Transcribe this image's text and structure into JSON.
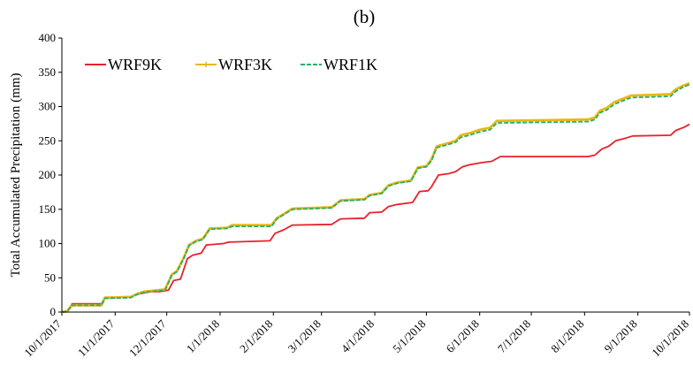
{
  "chart_data": {
    "type": "line",
    "title": "(b)",
    "xlabel": "",
    "ylabel": "Total Accumulated Precipitation (mm)",
    "ylim": [
      0,
      400
    ],
    "yticks": [
      0,
      50,
      100,
      150,
      200,
      250,
      300,
      350,
      400
    ],
    "xlim": [
      "2017-10-01",
      "2018-10-01"
    ],
    "xticks": [
      {
        "date": "2017-10-01",
        "label": "10/1/2017"
      },
      {
        "date": "2017-11-01",
        "label": "11/1/2017"
      },
      {
        "date": "2017-12-01",
        "label": "12/1/2017"
      },
      {
        "date": "2018-01-01",
        "label": "1/1/2018"
      },
      {
        "date": "2018-02-01",
        "label": "2/1/2018"
      },
      {
        "date": "2018-03-01",
        "label": "3/1/2018"
      },
      {
        "date": "2018-04-01",
        "label": "4/1/2018"
      },
      {
        "date": "2018-05-01",
        "label": "5/1/2018"
      },
      {
        "date": "2018-06-01",
        "label": "6/1/2018"
      },
      {
        "date": "2018-07-01",
        "label": "7/1/2018"
      },
      {
        "date": "2018-08-01",
        "label": "8/1/2018"
      },
      {
        "date": "2018-09-01",
        "label": "9/1/2018"
      },
      {
        "date": "2018-10-01",
        "label": "10/1/2018"
      }
    ],
    "grid": false,
    "legend_position": "top-left",
    "series": [
      {
        "name": "WRF9K",
        "color": "#e8212b",
        "marker": "none",
        "points": [
          [
            "2017-10-01",
            0
          ],
          [
            "2017-10-04",
            1
          ],
          [
            "2017-10-07",
            12
          ],
          [
            "2017-10-24",
            12
          ],
          [
            "2017-10-26",
            21
          ],
          [
            "2017-11-10",
            22
          ],
          [
            "2017-11-14",
            26
          ],
          [
            "2017-11-18",
            28
          ],
          [
            "2017-11-22",
            30
          ],
          [
            "2017-11-27",
            30
          ],
          [
            "2017-12-02",
            32
          ],
          [
            "2017-12-05",
            46
          ],
          [
            "2017-12-09",
            48
          ],
          [
            "2017-12-13",
            78
          ],
          [
            "2017-12-16",
            83
          ],
          [
            "2017-12-21",
            86
          ],
          [
            "2017-12-24",
            98
          ],
          [
            "2018-01-03",
            100
          ],
          [
            "2018-01-06",
            102
          ],
          [
            "2018-01-30",
            104
          ],
          [
            "2018-02-02",
            115
          ],
          [
            "2018-02-07",
            120
          ],
          [
            "2018-02-12",
            127
          ],
          [
            "2018-03-07",
            128
          ],
          [
            "2018-03-12",
            136
          ],
          [
            "2018-03-26",
            137
          ],
          [
            "2018-03-29",
            145
          ],
          [
            "2018-04-05",
            146
          ],
          [
            "2018-04-09",
            154
          ],
          [
            "2018-04-14",
            157
          ],
          [
            "2018-04-23",
            160
          ],
          [
            "2018-04-27",
            176
          ],
          [
            "2018-05-02",
            177
          ],
          [
            "2018-05-04",
            183
          ],
          [
            "2018-05-08",
            200
          ],
          [
            "2018-05-14",
            202
          ],
          [
            "2018-05-18",
            205
          ],
          [
            "2018-05-22",
            212
          ],
          [
            "2018-05-26",
            215
          ],
          [
            "2018-06-02",
            218
          ],
          [
            "2018-06-08",
            220
          ],
          [
            "2018-06-13",
            227
          ],
          [
            "2018-08-03",
            227
          ],
          [
            "2018-08-07",
            229
          ],
          [
            "2018-08-11",
            238
          ],
          [
            "2018-08-15",
            242
          ],
          [
            "2018-08-19",
            250
          ],
          [
            "2018-08-25",
            254
          ],
          [
            "2018-08-29",
            257
          ],
          [
            "2018-09-20",
            258
          ],
          [
            "2018-09-23",
            265
          ],
          [
            "2018-09-28",
            270
          ],
          [
            "2018-10-01",
            274
          ]
        ]
      },
      {
        "name": "WRF3K",
        "color": "#e9b814",
        "marker": "plus",
        "points": [
          [
            "2017-10-01",
            0
          ],
          [
            "2017-10-04",
            1
          ],
          [
            "2017-10-07",
            10
          ],
          [
            "2017-10-24",
            10
          ],
          [
            "2017-10-26",
            21
          ],
          [
            "2017-11-10",
            22
          ],
          [
            "2017-11-14",
            27
          ],
          [
            "2017-11-18",
            30
          ],
          [
            "2017-11-22",
            31
          ],
          [
            "2017-11-30",
            33
          ],
          [
            "2017-12-04",
            55
          ],
          [
            "2017-12-07",
            60
          ],
          [
            "2017-12-11",
            80
          ],
          [
            "2017-12-14",
            98
          ],
          [
            "2017-12-18",
            104
          ],
          [
            "2017-12-22",
            107
          ],
          [
            "2017-12-26",
            122
          ],
          [
            "2018-01-05",
            123
          ],
          [
            "2018-01-08",
            127
          ],
          [
            "2018-01-31",
            127
          ],
          [
            "2018-02-03",
            137
          ],
          [
            "2018-02-07",
            143
          ],
          [
            "2018-02-12",
            151
          ],
          [
            "2018-03-07",
            153
          ],
          [
            "2018-03-12",
            163
          ],
          [
            "2018-03-26",
            165
          ],
          [
            "2018-03-29",
            171
          ],
          [
            "2018-04-05",
            174
          ],
          [
            "2018-04-09",
            185
          ],
          [
            "2018-04-14",
            189
          ],
          [
            "2018-04-22",
            192
          ],
          [
            "2018-04-26",
            211
          ],
          [
            "2018-05-01",
            213
          ],
          [
            "2018-05-04",
            223
          ],
          [
            "2018-05-07",
            242
          ],
          [
            "2018-05-13",
            246
          ],
          [
            "2018-05-18",
            250
          ],
          [
            "2018-05-21",
            258
          ],
          [
            "2018-05-26",
            261
          ],
          [
            "2018-06-01",
            266
          ],
          [
            "2018-06-07",
            269
          ],
          [
            "2018-06-11",
            279
          ],
          [
            "2018-08-03",
            281
          ],
          [
            "2018-08-07",
            284
          ],
          [
            "2018-08-10",
            294
          ],
          [
            "2018-08-14",
            298
          ],
          [
            "2018-08-18",
            306
          ],
          [
            "2018-08-24",
            312
          ],
          [
            "2018-08-28",
            316
          ],
          [
            "2018-09-20",
            318
          ],
          [
            "2018-09-23",
            325
          ],
          [
            "2018-09-27",
            330
          ],
          [
            "2018-10-01",
            334
          ]
        ]
      },
      {
        "name": "WRF1K",
        "color": "#24b06a",
        "marker": "dash",
        "points": [
          [
            "2017-10-01",
            0
          ],
          [
            "2017-10-04",
            1
          ],
          [
            "2017-10-07",
            10
          ],
          [
            "2017-10-24",
            10
          ],
          [
            "2017-10-26",
            20
          ],
          [
            "2017-11-10",
            21
          ],
          [
            "2017-11-14",
            26
          ],
          [
            "2017-11-18",
            29
          ],
          [
            "2017-11-22",
            30
          ],
          [
            "2017-11-30",
            32
          ],
          [
            "2017-12-04",
            54
          ],
          [
            "2017-12-07",
            59
          ],
          [
            "2017-12-11",
            79
          ],
          [
            "2017-12-14",
            97
          ],
          [
            "2017-12-18",
            103
          ],
          [
            "2017-12-22",
            106
          ],
          [
            "2017-12-26",
            121
          ],
          [
            "2018-01-05",
            122
          ],
          [
            "2018-01-08",
            125
          ],
          [
            "2018-01-31",
            125
          ],
          [
            "2018-02-03",
            136
          ],
          [
            "2018-02-07",
            142
          ],
          [
            "2018-02-12",
            150
          ],
          [
            "2018-03-07",
            152
          ],
          [
            "2018-03-12",
            162
          ],
          [
            "2018-03-26",
            164
          ],
          [
            "2018-03-29",
            170
          ],
          [
            "2018-04-05",
            173
          ],
          [
            "2018-04-09",
            184
          ],
          [
            "2018-04-14",
            188
          ],
          [
            "2018-04-22",
            191
          ],
          [
            "2018-04-26",
            210
          ],
          [
            "2018-05-01",
            212
          ],
          [
            "2018-05-04",
            221
          ],
          [
            "2018-05-07",
            240
          ],
          [
            "2018-05-13",
            244
          ],
          [
            "2018-05-18",
            248
          ],
          [
            "2018-05-21",
            255
          ],
          [
            "2018-05-26",
            258
          ],
          [
            "2018-06-01",
            263
          ],
          [
            "2018-06-07",
            266
          ],
          [
            "2018-06-11",
            276
          ],
          [
            "2018-08-03",
            278
          ],
          [
            "2018-08-07",
            281
          ],
          [
            "2018-08-10",
            291
          ],
          [
            "2018-08-14",
            295
          ],
          [
            "2018-08-18",
            303
          ],
          [
            "2018-08-24",
            309
          ],
          [
            "2018-08-28",
            313
          ],
          [
            "2018-09-20",
            315
          ],
          [
            "2018-09-23",
            322
          ],
          [
            "2018-09-27",
            328
          ],
          [
            "2018-10-01",
            332
          ]
        ]
      }
    ]
  }
}
